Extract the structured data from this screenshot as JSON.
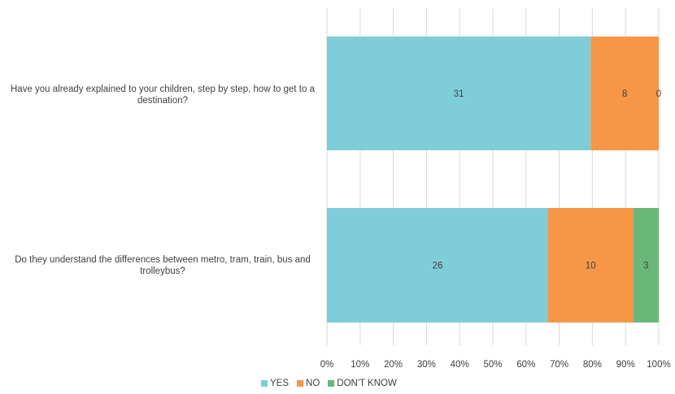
{
  "chart_data": {
    "type": "bar",
    "orientation": "horizontal",
    "stacking": "percent",
    "categories": [
      "Have you already explained to your children, step by step, how to get to a destination?",
      "Do they understand the differences between metro, tram, train, bus and trolleybus?"
    ],
    "series": [
      {
        "name": "YES",
        "color": "#7ecdd9",
        "values": [
          31,
          26
        ]
      },
      {
        "name": "NO",
        "color": "#f79646",
        "values": [
          8,
          10
        ]
      },
      {
        "name": "DON'T KNOW",
        "color": "#6ab77a",
        "values": [
          0,
          3
        ]
      }
    ],
    "xticks": [
      "0%",
      "10%",
      "20%",
      "30%",
      "40%",
      "50%",
      "60%",
      "70%",
      "80%",
      "90%",
      "100%"
    ],
    "xlim": [
      0,
      100
    ],
    "grid": true,
    "legend_position": "bottom"
  }
}
